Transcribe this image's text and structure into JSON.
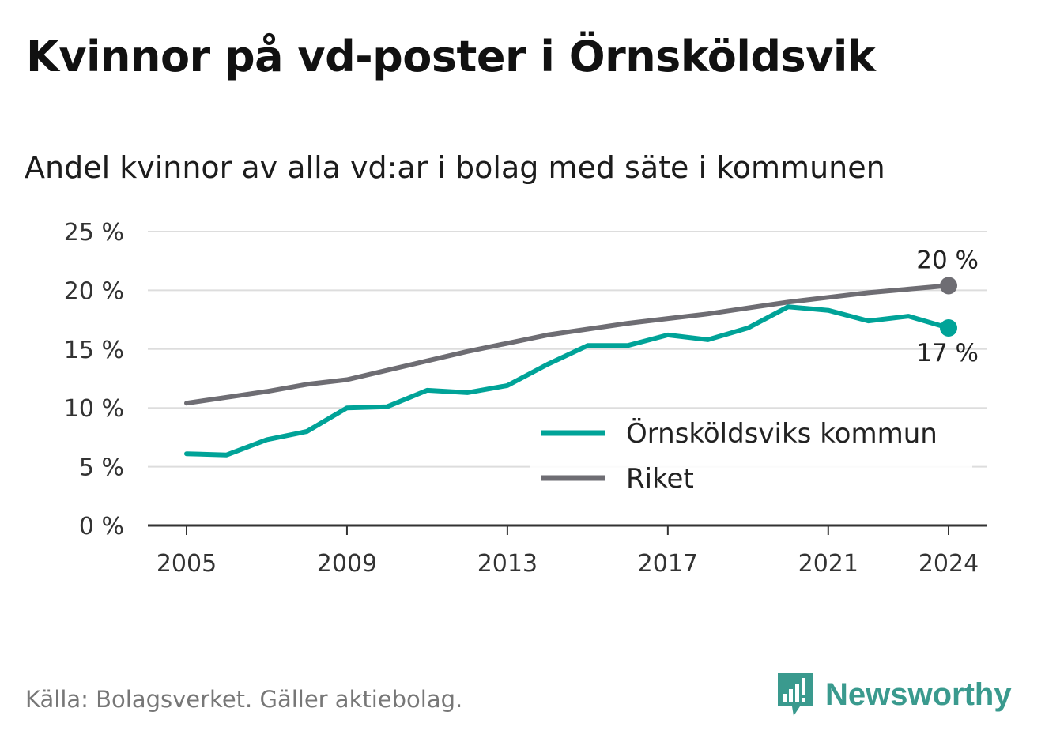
{
  "title": "Kvinnor på vd-poster i Örnsköldsvik",
  "subtitle": "Andel kvinnor av alla vd:ar i bolag med säte i kommunen",
  "source": "Källa: Bolagsverket. Gäller aktiebolag.",
  "brand": {
    "name": "Newsworthy",
    "icon": "newsworthy-logo-icon",
    "color": "#3a9a8e"
  },
  "chart_data": {
    "type": "line",
    "x": [
      2005,
      2006,
      2007,
      2008,
      2009,
      2010,
      2011,
      2012,
      2013,
      2014,
      2015,
      2016,
      2017,
      2018,
      2019,
      2020,
      2021,
      2022,
      2023,
      2024
    ],
    "series": [
      {
        "name": "Örnsköldsviks kommun",
        "color": "#00a398",
        "values": [
          6.1,
          6.0,
          7.3,
          8.0,
          10.0,
          10.1,
          11.5,
          11.3,
          11.9,
          13.7,
          15.3,
          15.3,
          16.2,
          15.8,
          16.8,
          18.6,
          18.3,
          17.4,
          17.8,
          16.8
        ],
        "end_label": "17 %"
      },
      {
        "name": "Riket",
        "color": "#6e6d73",
        "values": [
          10.4,
          10.9,
          11.4,
          12.0,
          12.4,
          13.2,
          14.0,
          14.8,
          15.5,
          16.2,
          16.7,
          17.2,
          17.6,
          18.0,
          18.5,
          19.0,
          19.4,
          19.8,
          20.1,
          20.4
        ],
        "end_label": "20 %"
      }
    ],
    "y_ticks": [
      "0 %",
      "5 %",
      "10 %",
      "15 %",
      "20 %",
      "25 %"
    ],
    "y_tick_values": [
      0,
      5,
      10,
      15,
      20,
      25
    ],
    "x_ticks": [
      "2005",
      "2009",
      "2013",
      "2017",
      "2021",
      "2024"
    ],
    "x_tick_values": [
      2005,
      2009,
      2013,
      2017,
      2021,
      2024
    ],
    "xlim": [
      2005,
      2024
    ],
    "ylim": [
      0,
      25
    ],
    "grid": true,
    "legend": "bottom-right"
  }
}
